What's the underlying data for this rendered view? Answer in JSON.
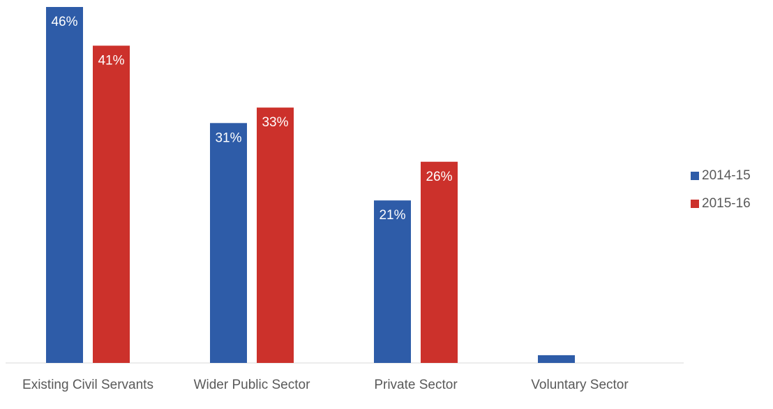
{
  "chart_data": {
    "type": "bar",
    "categories": [
      "Existing Civil Servants",
      "Wider Public Sector",
      "Private Sector",
      "Voluntary Sector"
    ],
    "series": [
      {
        "name": "2014-15",
        "color": "#2e5ca8",
        "values": [
          46,
          31,
          21,
          1
        ],
        "value_labels": [
          "46%",
          "31%",
          "21%",
          null
        ]
      },
      {
        "name": "2015-16",
        "color": "#cc312b",
        "values": [
          41,
          33,
          26,
          0
        ],
        "value_labels": [
          "41%",
          "33%",
          "26%",
          null
        ]
      }
    ],
    "legend": "right"
  }
}
